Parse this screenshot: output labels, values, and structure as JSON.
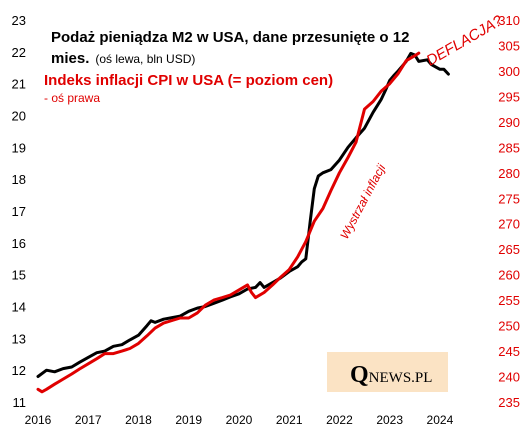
{
  "chart_data": {
    "type": "line",
    "title_line1": "Podaż pieniądza  M2 w USA, dane przesunięte o 12",
    "title_line2": "mies.",
    "title_line2_note": "(oś lewa, bln USD)",
    "subtitle_red": "Indeks inflacji  CPI w USA (= poziom cen)",
    "subtitle_red_note": "- oś prawa",
    "x_ticks": [
      "2016",
      "2017",
      "2018",
      "2019",
      "2020",
      "2021",
      "2022",
      "2023",
      "2024"
    ],
    "xlim": [
      2016,
      2024.4
    ],
    "y_left": {
      "ticks": [
        "11",
        "12",
        "13",
        "14",
        "15",
        "16",
        "17",
        "18",
        "19",
        "20",
        "21",
        "22",
        "23"
      ],
      "ylim": [
        11,
        23
      ]
    },
    "y_right": {
      "ticks": [
        "235",
        "240",
        "245",
        "250",
        "255",
        "260",
        "265",
        "270",
        "275",
        "280",
        "285",
        "290",
        "295",
        "300",
        "305",
        "310"
      ],
      "ylim": [
        235,
        310
      ]
    },
    "series": [
      {
        "axis": "left",
        "color": "#000000",
        "points": [
          [
            2016.0,
            11.8
          ],
          [
            2016.17,
            12.0
          ],
          [
            2016.33,
            11.95
          ],
          [
            2016.5,
            12.05
          ],
          [
            2016.67,
            12.1
          ],
          [
            2016.83,
            12.25
          ],
          [
            2017.0,
            12.4
          ],
          [
            2017.17,
            12.55
          ],
          [
            2017.33,
            12.6
          ],
          [
            2017.5,
            12.75
          ],
          [
            2017.67,
            12.8
          ],
          [
            2017.83,
            12.95
          ],
          [
            2018.0,
            13.1
          ],
          [
            2018.17,
            13.4
          ],
          [
            2018.25,
            13.55
          ],
          [
            2018.33,
            13.5
          ],
          [
            2018.5,
            13.6
          ],
          [
            2018.67,
            13.65
          ],
          [
            2018.83,
            13.7
          ],
          [
            2019.0,
            13.85
          ],
          [
            2019.17,
            13.95
          ],
          [
            2019.33,
            14.0
          ],
          [
            2019.5,
            14.1
          ],
          [
            2019.67,
            14.2
          ],
          [
            2019.83,
            14.3
          ],
          [
            2020.0,
            14.4
          ],
          [
            2020.17,
            14.55
          ],
          [
            2020.33,
            14.6
          ],
          [
            2020.42,
            14.75
          ],
          [
            2020.5,
            14.6
          ],
          [
            2020.67,
            14.75
          ],
          [
            2020.83,
            14.9
          ],
          [
            2021.0,
            15.1
          ],
          [
            2021.17,
            15.25
          ],
          [
            2021.25,
            15.4
          ],
          [
            2021.33,
            15.5
          ],
          [
            2021.42,
            16.7
          ],
          [
            2021.5,
            17.7
          ],
          [
            2021.58,
            18.1
          ],
          [
            2021.67,
            18.2
          ],
          [
            2021.83,
            18.3
          ],
          [
            2022.0,
            18.6
          ],
          [
            2022.17,
            19.0
          ],
          [
            2022.33,
            19.3
          ],
          [
            2022.5,
            19.6
          ],
          [
            2022.67,
            20.1
          ],
          [
            2022.83,
            20.5
          ],
          [
            2022.92,
            20.8
          ],
          [
            2023.0,
            21.1
          ],
          [
            2023.08,
            21.25
          ],
          [
            2023.17,
            21.4
          ],
          [
            2023.25,
            21.55
          ],
          [
            2023.33,
            21.7
          ],
          [
            2023.42,
            21.95
          ],
          [
            2023.5,
            21.9
          ],
          [
            2023.58,
            21.7
          ],
          [
            2023.75,
            21.75
          ],
          [
            2023.83,
            21.6
          ],
          [
            2024.0,
            21.45
          ],
          [
            2024.08,
            21.45
          ],
          [
            2024.17,
            21.3
          ]
        ]
      },
      {
        "axis": "right",
        "color": "#e00000",
        "points": [
          [
            2016.0,
            237.5
          ],
          [
            2016.08,
            237.0
          ],
          [
            2016.17,
            237.5
          ],
          [
            2016.33,
            238.5
          ],
          [
            2016.5,
            239.5
          ],
          [
            2016.67,
            240.5
          ],
          [
            2016.83,
            241.5
          ],
          [
            2017.0,
            242.5
          ],
          [
            2017.17,
            243.5
          ],
          [
            2017.33,
            244.5
          ],
          [
            2017.5,
            244.5
          ],
          [
            2017.67,
            245.0
          ],
          [
            2017.83,
            245.5
          ],
          [
            2018.0,
            246.5
          ],
          [
            2018.17,
            248.0
          ],
          [
            2018.33,
            249.5
          ],
          [
            2018.5,
            250.5
          ],
          [
            2018.67,
            251.0
          ],
          [
            2018.83,
            251.5
          ],
          [
            2019.0,
            251.5
          ],
          [
            2019.17,
            252.5
          ],
          [
            2019.33,
            254.0
          ],
          [
            2019.5,
            255.0
          ],
          [
            2019.67,
            255.5
          ],
          [
            2019.83,
            256.0
          ],
          [
            2020.0,
            257.0
          ],
          [
            2020.17,
            258.0
          ],
          [
            2020.25,
            256.5
          ],
          [
            2020.33,
            255.5
          ],
          [
            2020.5,
            256.5
          ],
          [
            2020.67,
            258.0
          ],
          [
            2020.83,
            259.5
          ],
          [
            2021.0,
            261.0
          ],
          [
            2021.17,
            263.5
          ],
          [
            2021.33,
            266.5
          ],
          [
            2021.5,
            270.5
          ],
          [
            2021.67,
            273.0
          ],
          [
            2021.83,
            276.5
          ],
          [
            2022.0,
            280.0
          ],
          [
            2022.17,
            283.0
          ],
          [
            2022.33,
            286.0
          ],
          [
            2022.5,
            292.5
          ],
          [
            2022.67,
            294.0
          ],
          [
            2022.83,
            296.0
          ],
          [
            2023.0,
            297.5
          ],
          [
            2023.17,
            299.5
          ],
          [
            2023.33,
            302.0
          ],
          [
            2023.5,
            303.0
          ],
          [
            2023.58,
            303.5
          ]
        ]
      }
    ],
    "annotations": {
      "wystrzal": "Wystrzał inflacji",
      "deflacja": "DEFLACJA?"
    },
    "watermark": {
      "q": "Q",
      "rest": "NEWS.PL"
    },
    "colors": {
      "red": "#e00000",
      "black": "#000000",
      "watermark_bg": "#fbe3c4"
    }
  }
}
